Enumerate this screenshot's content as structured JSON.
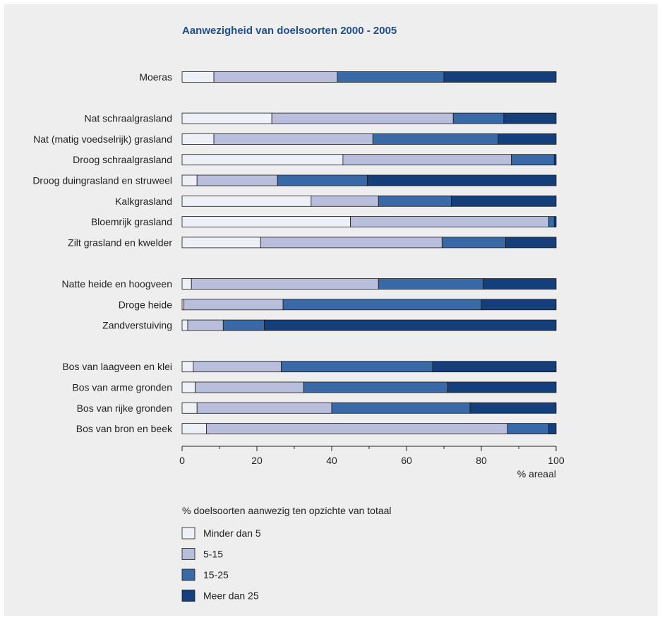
{
  "chart_data": {
    "type": "bar",
    "orientation": "horizontal",
    "stacked": true,
    "title": "Aanwezigheid van doelsoorten 2000 - 2005",
    "xlabel": "% areaal",
    "xlim": [
      0,
      100
    ],
    "xticks": [
      "0",
      "20",
      "40",
      "60",
      "80",
      "100"
    ],
    "legend_title": "% doelsoorten aanwezig ten opzichte van totaal",
    "legend_position": "bottom",
    "grid": false,
    "colors": [
      "#eef0f8",
      "#b9bedd",
      "#3a69a8",
      "#153f7a"
    ],
    "series": [
      {
        "name": "Minder dan 5"
      },
      {
        "name": "5-15"
      },
      {
        "name": "15-25"
      },
      {
        "name": "Meer dan 25"
      }
    ],
    "groups": [
      [
        {
          "label": "Moeras",
          "values": [
            8.5,
            33,
            28.5,
            30
          ]
        }
      ],
      [
        {
          "label": "Nat schraalgrasland",
          "values": [
            24,
            48.5,
            13.5,
            14
          ]
        },
        {
          "label": "Nat (matig voedselrijk) grasland",
          "values": [
            8.5,
            42.5,
            33.5,
            15.5
          ]
        },
        {
          "label": "Droog schraalgrasland",
          "values": [
            43,
            45,
            11.5,
            0.5
          ]
        },
        {
          "label": "Droog duingrasland en struweel",
          "values": [
            4,
            21.5,
            24,
            50.5
          ]
        },
        {
          "label": "Kalkgrasland",
          "values": [
            34.5,
            18,
            19.5,
            28
          ]
        },
        {
          "label": "Bloemrijk grasland",
          "values": [
            45,
            53,
            1.5,
            0.5
          ]
        },
        {
          "label": "Zilt grasland en kwelder",
          "values": [
            21,
            48.5,
            17,
            13.5
          ]
        }
      ],
      [
        {
          "label": "Natte heide en hoogveen",
          "values": [
            2.5,
            50,
            28,
            19.5
          ]
        },
        {
          "label": "Droge heide",
          "values": [
            0.5,
            26.5,
            53,
            20
          ]
        },
        {
          "label": "Zandverstuiving",
          "values": [
            1.5,
            9.5,
            11,
            78
          ]
        }
      ],
      [
        {
          "label": "Bos van laagveen en klei",
          "values": [
            3,
            23.5,
            40.5,
            33
          ]
        },
        {
          "label": "Bos van arme gronden",
          "values": [
            3.5,
            29,
            38.5,
            29
          ]
        },
        {
          "label": "Bos van rijke gronden",
          "values": [
            4,
            36,
            37,
            23
          ]
        },
        {
          "label": "Bos van bron en beek",
          "values": [
            6.5,
            80.5,
            11,
            2
          ]
        }
      ]
    ]
  }
}
